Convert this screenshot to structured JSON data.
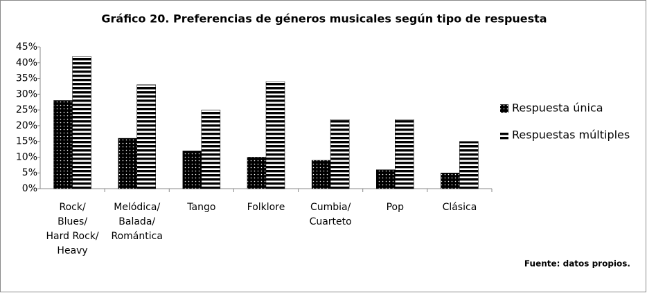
{
  "chart_data": {
    "type": "bar",
    "title": "Gráfico 20. Preferencias de géneros musicales según tipo de respuesta",
    "source": "Fuente: datos propios.",
    "categories": [
      "Rock/ Blues/ Hard Rock/ Heavy",
      "Melódica/ Balada/ Romántica",
      "Tango",
      "Folklore",
      "Cumbia/ Cuarteto",
      "Pop",
      "Clásica"
    ],
    "series": [
      {
        "name": "Respuesta única",
        "color": "#000000",
        "pattern": "dots",
        "values": [
          28,
          16,
          12,
          10,
          9,
          6,
          5
        ]
      },
      {
        "name": "Respuestas múltiples",
        "color": "#000000",
        "pattern": "stripes",
        "values": [
          42,
          33,
          25,
          34,
          22,
          22,
          15
        ]
      }
    ],
    "ylim": [
      0,
      45
    ],
    "yticks": [
      {
        "value": 0,
        "label": "0%"
      },
      {
        "value": 5,
        "label": "5%"
      },
      {
        "value": 10,
        "label": "10%"
      },
      {
        "value": 15,
        "label": "15%"
      },
      {
        "value": 20,
        "label": "20%"
      },
      {
        "value": 25,
        "label": "25%"
      },
      {
        "value": 30,
        "label": "30%"
      },
      {
        "value": 35,
        "label": "35%"
      },
      {
        "value": 40,
        "label": "40%"
      },
      {
        "value": 45,
        "label": "45%"
      }
    ],
    "legend": "right"
  }
}
